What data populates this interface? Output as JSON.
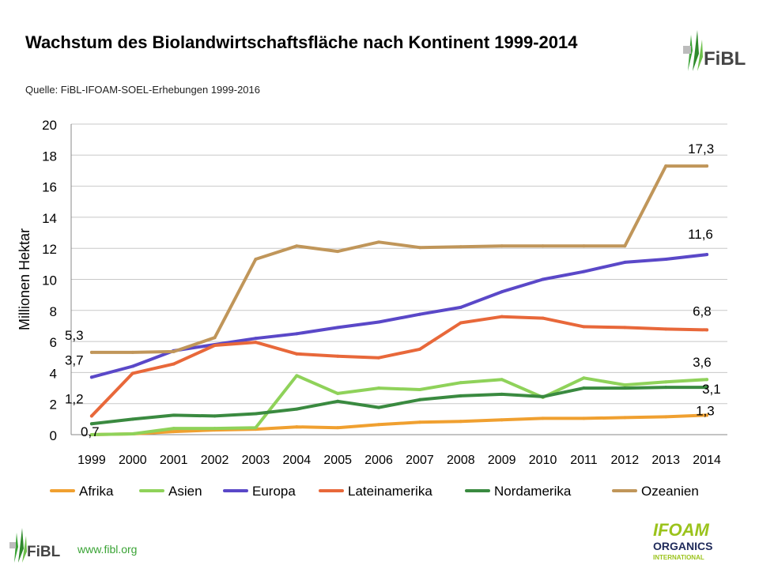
{
  "header": {
    "title": "Wachstum des Biolandwirtschaftsfläche nach Kontinent 1999-2014",
    "source": "Quelle: FiBL-IFOAM-SOEL-Erhebungen 1999-2016"
  },
  "footer": {
    "url": "www.fibl.org",
    "logo_fibl_text": "FiBL",
    "logo_ifoam_lines": [
      "IFOAM",
      "ORGANICS",
      "INTERNATIONAL"
    ]
  },
  "chart_data": {
    "type": "line",
    "title": "Wachstum des Biolandwirtschaftsfläche nach Kontinent 1999-2014",
    "xlabel": "",
    "ylabel": "Millionen Hektar",
    "ylim": [
      0,
      20
    ],
    "yticks": [
      0,
      2,
      4,
      6,
      8,
      10,
      12,
      14,
      16,
      18,
      20
    ],
    "grid": true,
    "legend_position": "bottom",
    "categories": [
      "1999",
      "2000",
      "2001",
      "2002",
      "2003",
      "2004",
      "2005",
      "2006",
      "2007",
      "2008",
      "2009",
      "2010",
      "2011",
      "2012",
      "2013",
      "2014"
    ],
    "series": [
      {
        "name": "Afrika",
        "color": "#f0a030",
        "values": [
          0.0,
          0.05,
          0.2,
          0.3,
          0.35,
          0.5,
          0.45,
          0.65,
          0.8,
          0.85,
          0.95,
          1.05,
          1.05,
          1.1,
          1.15,
          1.25
        ]
      },
      {
        "name": "Asien",
        "color": "#8fd25a",
        "values": [
          0.0,
          0.05,
          0.4,
          0.4,
          0.45,
          3.8,
          2.65,
          3.0,
          2.9,
          3.35,
          3.55,
          2.4,
          3.65,
          3.2,
          3.4,
          3.55
        ]
      },
      {
        "name": "Europa",
        "color": "#5a48c8",
        "values": [
          3.7,
          4.4,
          5.4,
          5.8,
          6.2,
          6.5,
          6.9,
          7.25,
          7.75,
          8.2,
          9.2,
          10.0,
          10.5,
          11.1,
          11.3,
          11.6
        ]
      },
      {
        "name": "Lateinamerika",
        "color": "#e8683a",
        "values": [
          1.2,
          3.95,
          4.55,
          5.75,
          5.95,
          5.2,
          5.05,
          4.95,
          5.5,
          7.2,
          7.6,
          7.5,
          6.95,
          6.9,
          6.8,
          6.75
        ]
      },
      {
        "name": "Nordamerika",
        "color": "#3a8a40",
        "values": [
          0.7,
          1.0,
          1.25,
          1.2,
          1.35,
          1.65,
          2.15,
          1.75,
          2.25,
          2.5,
          2.6,
          2.45,
          3.0,
          3.0,
          3.05,
          3.05
        ]
      },
      {
        "name": "Ozeanien",
        "color": "#c0965a",
        "values": [
          5.3,
          5.3,
          5.35,
          6.25,
          11.3,
          12.15,
          11.8,
          12.4,
          12.05,
          12.1,
          12.15,
          12.15,
          12.15,
          12.15,
          17.3,
          17.3
        ]
      }
    ],
    "annotations": [
      {
        "text": "5,3",
        "series": "Ozeanien",
        "category": "1999"
      },
      {
        "text": "3,7",
        "series": "Europa",
        "category": "1999"
      },
      {
        "text": "1,2",
        "series": "Lateinamerika",
        "category": "1999"
      },
      {
        "text": "0,7",
        "series": "Nordamerika",
        "category": "1999"
      },
      {
        "text": "17,3",
        "series": "Ozeanien",
        "category": "2014"
      },
      {
        "text": "11,6",
        "series": "Europa",
        "category": "2014"
      },
      {
        "text": "6,8",
        "series": "Lateinamerika",
        "category": "2014"
      },
      {
        "text": "3,6",
        "series": "Asien",
        "category": "2014"
      },
      {
        "text": "3,1",
        "series": "Nordamerika",
        "category": "2014"
      },
      {
        "text": "1,3",
        "series": "Afrika",
        "category": "2014"
      }
    ]
  }
}
